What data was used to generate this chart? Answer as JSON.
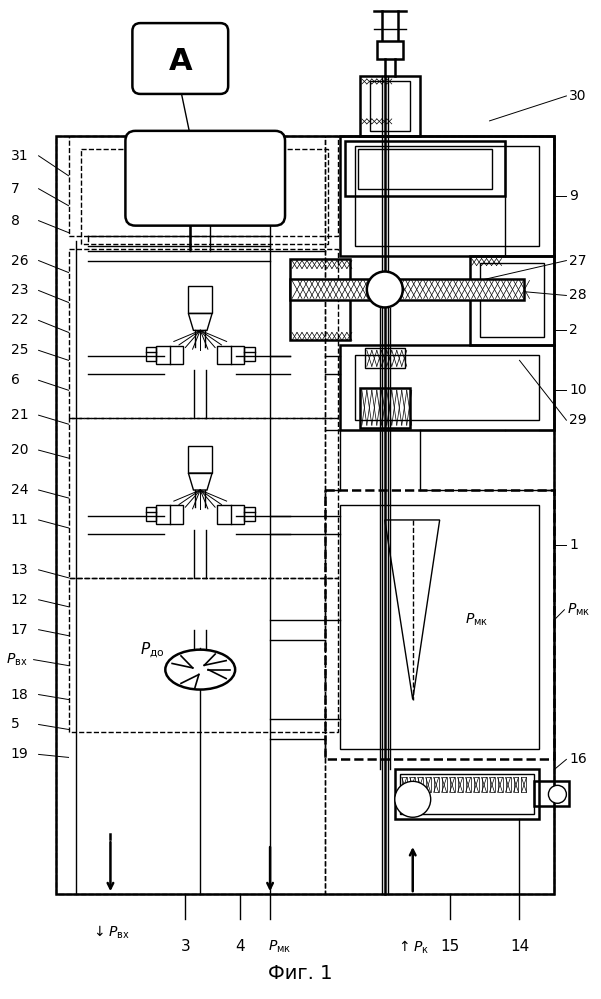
{
  "title": "Фиг. 1",
  "bg_color": "#ffffff",
  "line_color": "#000000",
  "figsize": [
    6.01,
    9.99
  ],
  "dpi": 100
}
